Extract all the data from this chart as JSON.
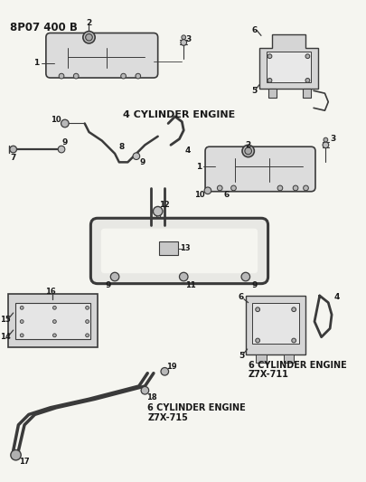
{
  "bg_color": "#f5f5f0",
  "line_color": "#3a3a3a",
  "text_color": "#1a1a1a",
  "header": "8P07 400 B",
  "label_4cyl": "4 CYLINDER ENGINE",
  "label_6cyl_711_a": "6 CYLINDER ENGINE",
  "label_6cyl_711_b": "Z7X-711",
  "label_6cyl_715_a": "6 CYLINDER ENGINE",
  "label_6cyl_715_b": "Z7X-715"
}
